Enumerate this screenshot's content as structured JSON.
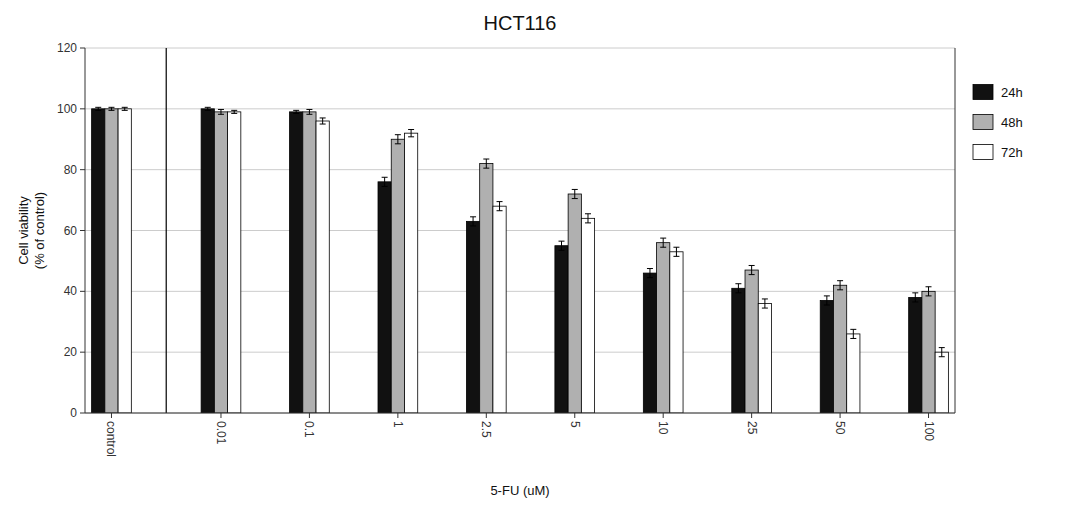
{
  "chart_data": {
    "type": "bar",
    "title": "HCT116",
    "x_label": "5-FU (uM)",
    "y_label": "Cell viability\n(% of control)",
    "categories": [
      "control",
      "0.01",
      "0.1",
      "1",
      "2.5",
      "5",
      "10",
      "25",
      "50",
      "100"
    ],
    "series": [
      {
        "name": "24h",
        "color": "#111111",
        "values": [
          100,
          100,
          99,
          76,
          63,
          55,
          46,
          41,
          37,
          38
        ],
        "errors": [
          0.5,
          0.5,
          0.5,
          1.5,
          1.5,
          1.5,
          1.5,
          1.5,
          1.5,
          1.5
        ]
      },
      {
        "name": "48h",
        "color": "#b0b0b0",
        "values": [
          100,
          99,
          99,
          90,
          82,
          72,
          56,
          47,
          42,
          40
        ],
        "errors": [
          0.5,
          0.8,
          0.8,
          1.5,
          1.5,
          1.5,
          1.5,
          1.5,
          1.5,
          1.5
        ]
      },
      {
        "name": "72h",
        "color": "#ffffff",
        "values": [
          100,
          99,
          96,
          92,
          68,
          64,
          53,
          36,
          26,
          20
        ],
        "errors": [
          0.5,
          0.5,
          1.0,
          1.2,
          1.5,
          1.5,
          1.5,
          1.5,
          1.5,
          1.5
        ]
      }
    ],
    "ylim": [
      0,
      120
    ],
    "yticks": [
      0,
      20,
      40,
      60,
      80,
      100,
      120
    ],
    "grid": true,
    "legend": "right"
  }
}
